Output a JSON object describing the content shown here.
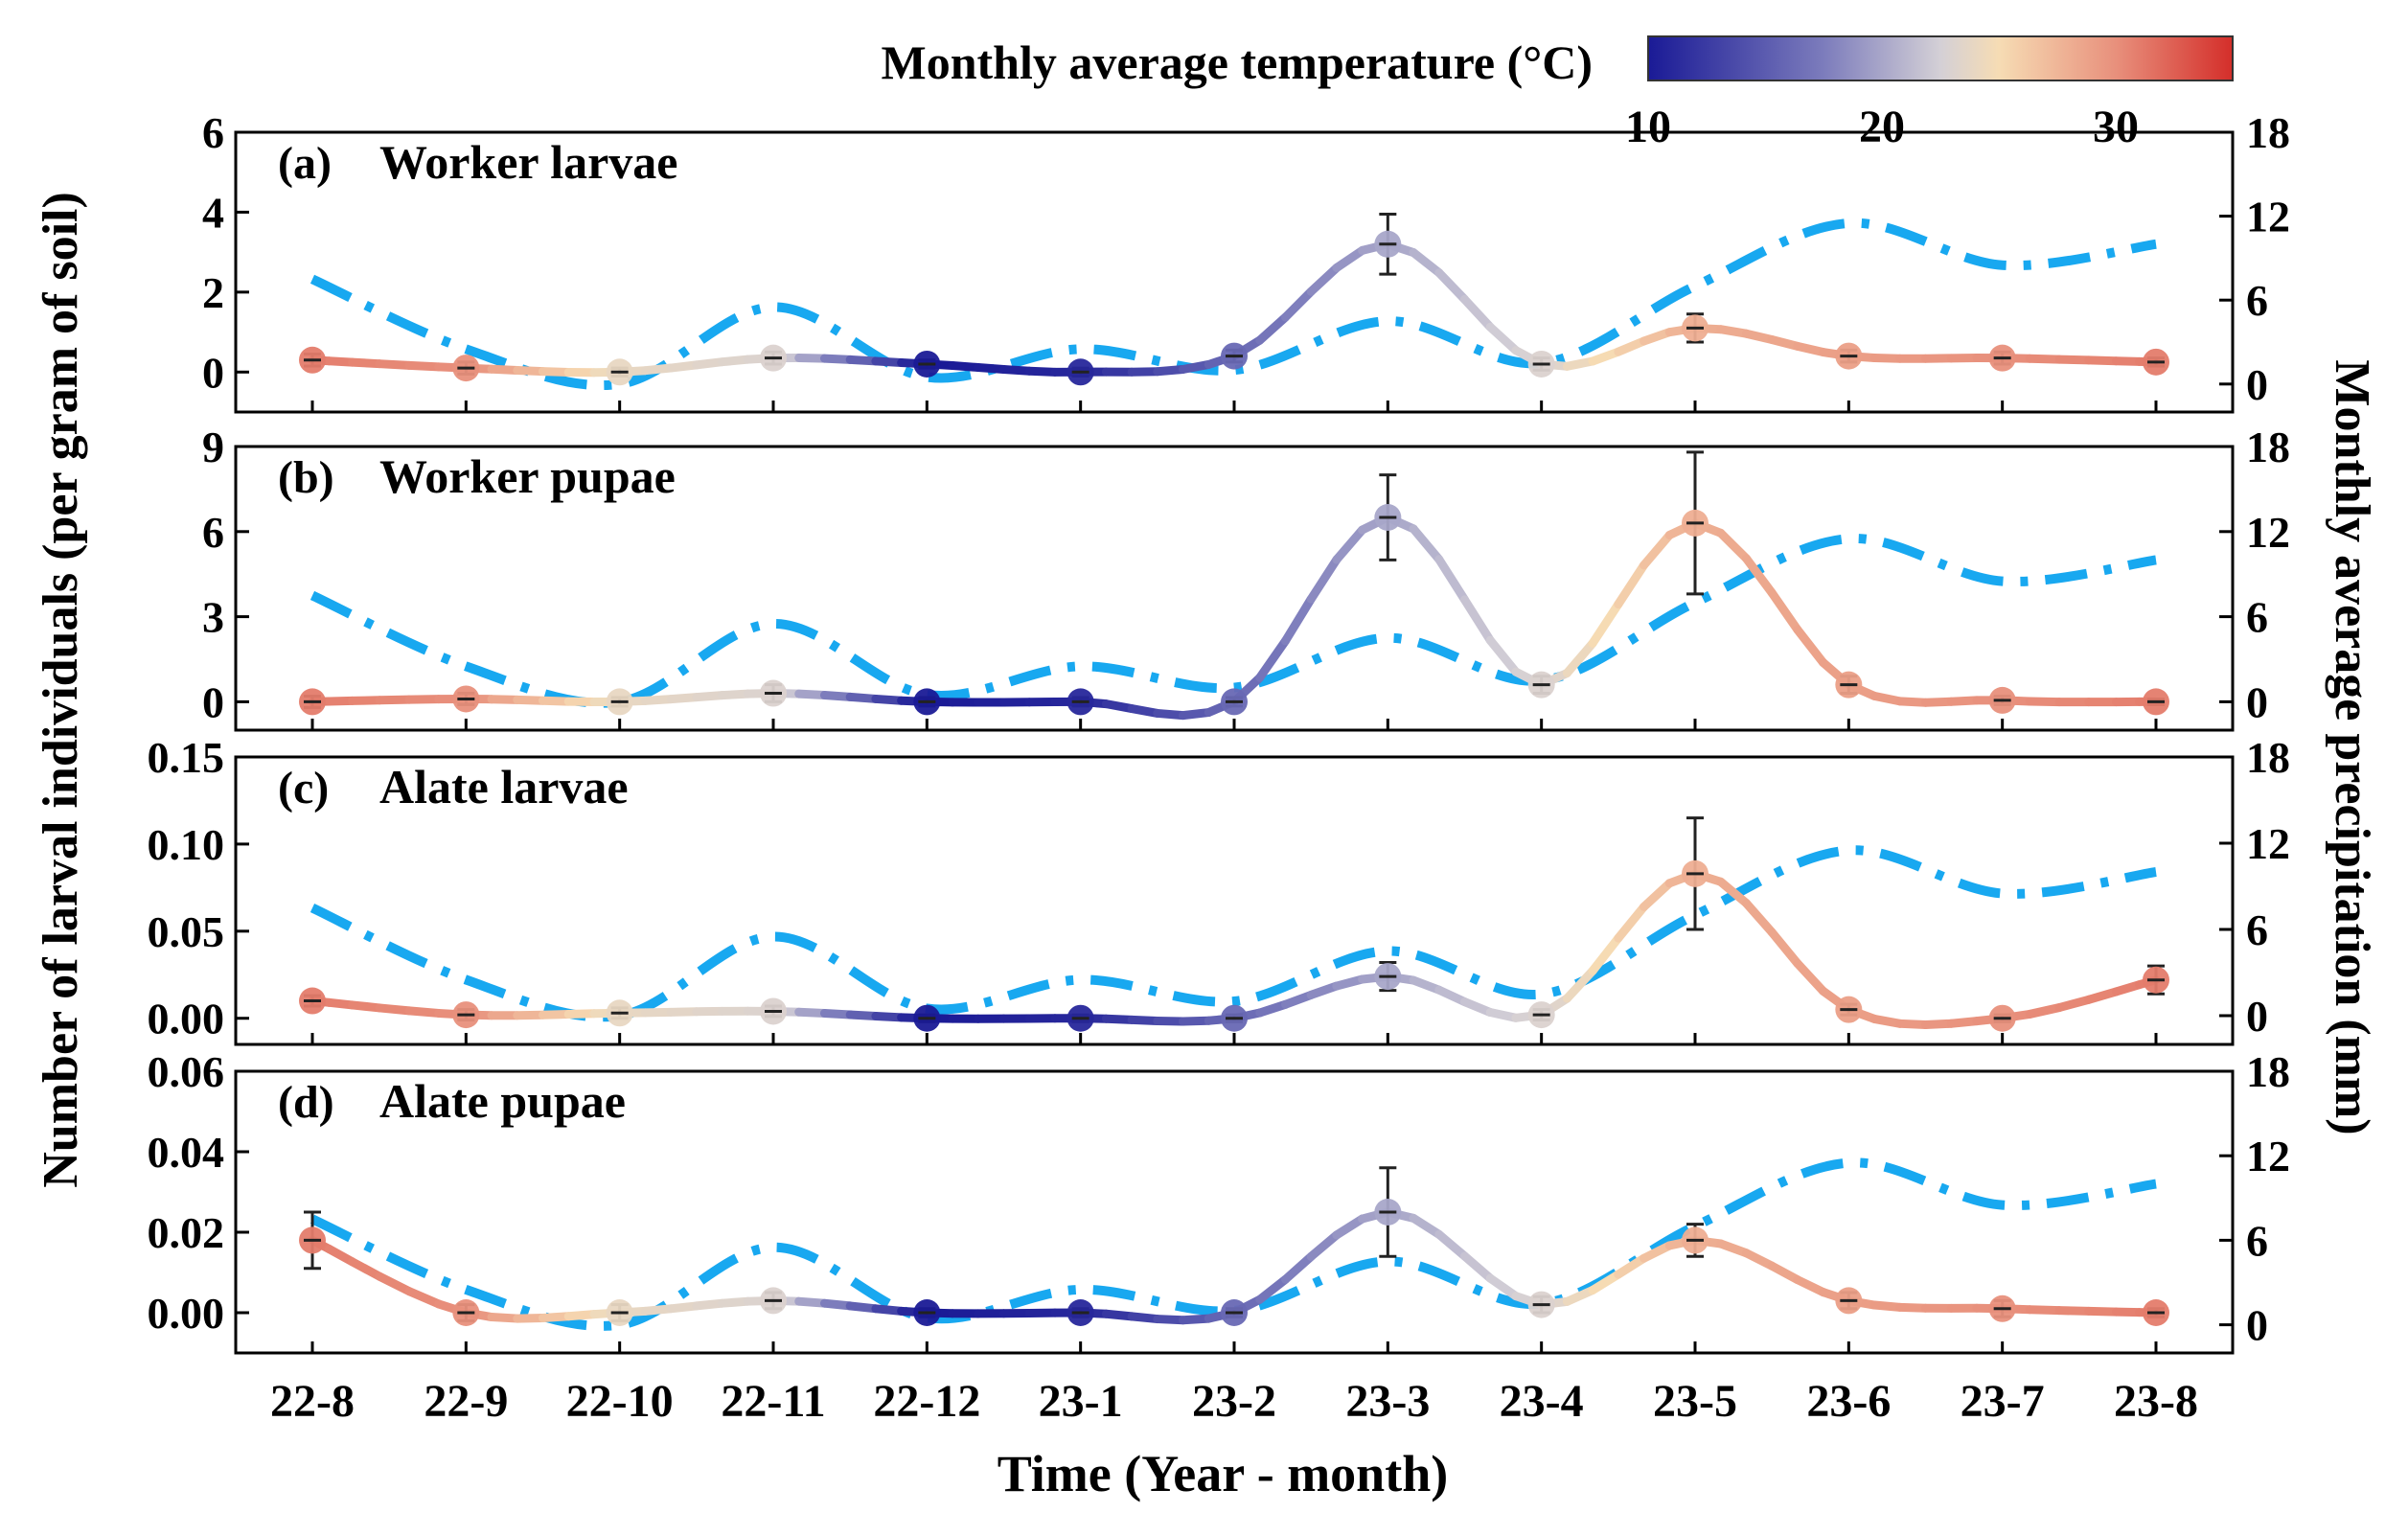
{
  "chart_data": {
    "type": "line",
    "colorbar": {
      "title": "Monthly average temperature (°C)",
      "min": 10,
      "max": 35,
      "ticks": [
        "10",
        "20",
        "30"
      ],
      "colors": [
        "#1a1a96",
        "#7c7cbc",
        "#d4d0d6",
        "#f6dcb4",
        "#e8907c",
        "#d42e2a"
      ]
    },
    "x_categories": [
      "22-8",
      "22-9",
      "22-10",
      "22-11",
      "22-12",
      "23-1",
      "23-2",
      "23-3",
      "23-4",
      "23-5",
      "23-6",
      "23-7",
      "23-8"
    ],
    "xlabel": "Time (Year - month)",
    "ylabel_left": "Number of larval individuals (per gram of soil)",
    "ylabel_right": "Monthly average precipitation (mm)",
    "temperature_c": [
      31,
      30,
      24,
      23,
      10,
      11,
      16,
      20,
      23,
      28,
      29,
      30,
      31
    ],
    "precipitation_series_color": "#18a8f0",
    "panels": [
      {
        "id": "a",
        "label": "(a)",
        "title": "Worker larvae",
        "ylim": [
          -1,
          6
        ],
        "yticks": [
          "0",
          "2",
          "4",
          "6"
        ],
        "ytick_values": [
          0,
          2,
          4,
          6
        ],
        "values": [
          0.3,
          0.1,
          0.0,
          0.35,
          0.2,
          0.0,
          0.4,
          3.2,
          0.2,
          1.1,
          0.4,
          0.35,
          0.25
        ],
        "errors": [
          0.15,
          0.15,
          0.1,
          0.15,
          0.1,
          0.1,
          0.15,
          0.75,
          0.15,
          0.35,
          0.15,
          0.15,
          0.1
        ],
        "right_ylim": [
          -2,
          18
        ],
        "precipitation": [
          7.5,
          2.5,
          0.0,
          5.5,
          0.5,
          2.5,
          1.0,
          4.5,
          1.5,
          7.0,
          11.5,
          8.5,
          10.0
        ]
      },
      {
        "id": "b",
        "label": "(b)",
        "title": "Worker pupae",
        "ylim": [
          -1,
          9
        ],
        "yticks": [
          "0",
          "3",
          "6",
          "9"
        ],
        "ytick_values": [
          0,
          3,
          6,
          9
        ],
        "values": [
          0.0,
          0.1,
          0.0,
          0.3,
          0.0,
          0.0,
          0.0,
          6.5,
          0.6,
          6.3,
          0.6,
          0.05,
          0.0
        ],
        "errors": [
          0.2,
          0.2,
          0.15,
          0.3,
          0.15,
          0.15,
          0.15,
          1.5,
          0.3,
          2.5,
          0.3,
          0.15,
          0.1
        ],
        "right_ylim": [
          -2,
          18
        ],
        "precipitation": [
          7.5,
          2.5,
          0.0,
          5.5,
          0.5,
          2.5,
          1.0,
          4.5,
          1.5,
          7.0,
          11.5,
          8.5,
          10.0
        ]
      },
      {
        "id": "c",
        "label": "(c)",
        "title": "Alate larvae",
        "ylim": [
          -0.015,
          0.15
        ],
        "yticks": [
          "0.00",
          "0.05",
          "0.10",
          "0.15"
        ],
        "ytick_values": [
          0,
          0.05,
          0.1,
          0.15
        ],
        "values": [
          0.01,
          0.002,
          0.003,
          0.004,
          0.0,
          0.0,
          0.0,
          0.024,
          0.002,
          0.083,
          0.005,
          0.0,
          0.022
        ],
        "errors": [
          0.003,
          0.003,
          0.003,
          0.003,
          0.002,
          0.002,
          0.002,
          0.008,
          0.003,
          0.032,
          0.003,
          0.002,
          0.008
        ],
        "right_ylim": [
          -2,
          18
        ],
        "precipitation": [
          7.5,
          2.5,
          0.0,
          5.5,
          0.5,
          2.5,
          1.0,
          4.5,
          1.5,
          7.0,
          11.5,
          8.5,
          10.0
        ]
      },
      {
        "id": "d",
        "label": "(d)",
        "title": "Alate pupae",
        "ylim": [
          -0.01,
          0.06
        ],
        "yticks": [
          "0.00",
          "0.02",
          "0.04",
          "0.06"
        ],
        "ytick_values": [
          0,
          0.02,
          0.04,
          0.06
        ],
        "values": [
          0.018,
          0.0,
          0.0,
          0.003,
          0.0,
          0.0,
          0.0,
          0.025,
          0.002,
          0.018,
          0.003,
          0.001,
          0.0
        ],
        "errors": [
          0.007,
          0.002,
          0.002,
          0.002,
          0.001,
          0.001,
          0.001,
          0.011,
          0.002,
          0.004,
          0.002,
          0.002,
          0.001
        ],
        "right_ylim": [
          -2,
          18
        ],
        "precipitation": [
          7.5,
          2.5,
          0.0,
          5.5,
          0.5,
          2.5,
          1.0,
          4.5,
          1.5,
          7.0,
          11.5,
          8.5,
          10.0
        ]
      }
    ],
    "right_yticks": [
      "0",
      "6",
      "12",
      "18"
    ],
    "right_ytick_values": [
      0,
      6,
      12,
      18
    ]
  }
}
